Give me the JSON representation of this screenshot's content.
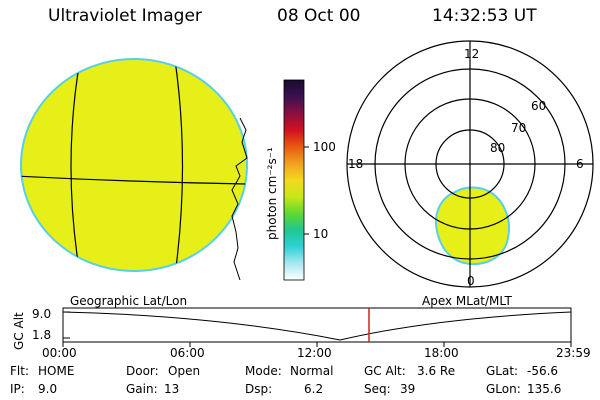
{
  "header": {
    "instrument": "Ultraviolet Imager",
    "date": "08 Oct 00",
    "time": "14:32:53 UT"
  },
  "colors": {
    "emission_fill": "#e6f018",
    "limb_color": "#55d0e8",
    "grid_line": "#000000",
    "timeline_marker": "#cc2222"
  },
  "colorbar": {
    "label": "photon cm⁻²s⁻¹",
    "ticks": [
      "100",
      "10"
    ],
    "stops": [
      "#1a0a2e",
      "#3a1050",
      "#8a1040",
      "#d01020",
      "#e85a10",
      "#f2a020",
      "#f4d820",
      "#c8e818",
      "#60d830",
      "#20c890",
      "#30d0d8",
      "#a8e8f0",
      "#ffffff"
    ]
  },
  "geo_panel": {
    "label": "Geographic Lat/Lon"
  },
  "polar_panel": {
    "label": "Apex MLat/MLT",
    "mlt_labels": {
      "top": "12",
      "left": "18",
      "right": "6",
      "bottom": "0"
    },
    "lat_labels": [
      "60",
      "70",
      "80"
    ]
  },
  "timeline": {
    "axis_label": "GC Alt",
    "y_ticks": [
      "9.0",
      "1.8"
    ],
    "x_ticks": [
      "00:00",
      "06:00",
      "12:00",
      "18:00",
      "23:59"
    ]
  },
  "info": {
    "row1": [
      {
        "key": "Flt:",
        "value": "HOME"
      },
      {
        "key": "Door:",
        "value": "Open"
      },
      {
        "key": "Mode:",
        "value": "Normal"
      },
      {
        "key": "GC Alt:",
        "value": "3.6 Re"
      },
      {
        "key": "GLat:",
        "value": "-56.6"
      }
    ],
    "row2": [
      {
        "key": "IP:",
        "value": "9.0"
      },
      {
        "key": "Gain:",
        "value": "13"
      },
      {
        "key": "Dsp:",
        "value": "6.2"
      },
      {
        "key": "Seq:",
        "value": "39"
      },
      {
        "key": "GLon:",
        "value": "135.6"
      }
    ]
  }
}
